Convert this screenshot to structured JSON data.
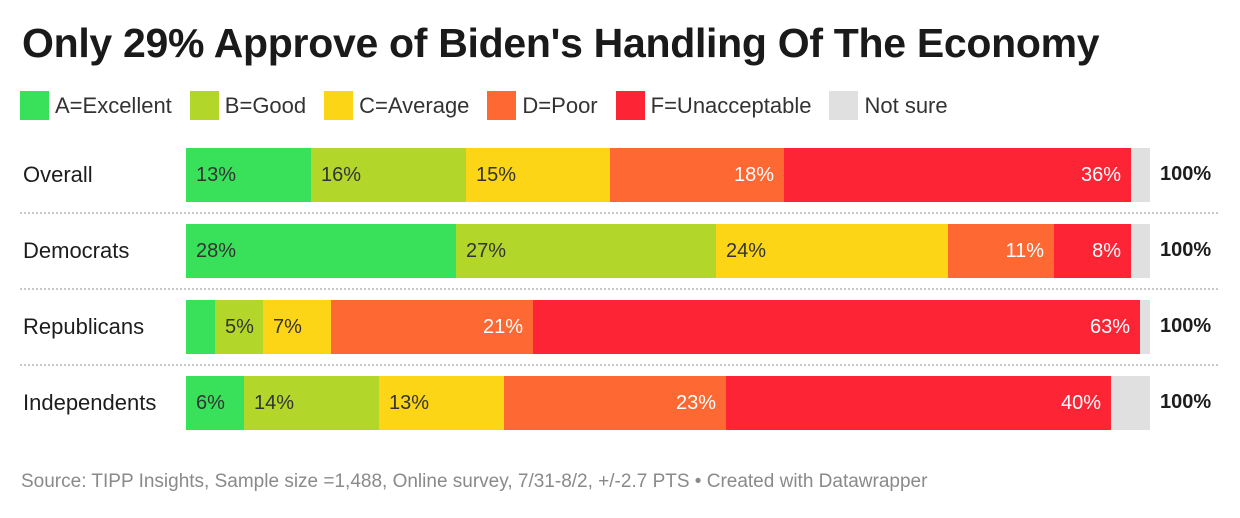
{
  "chart_data": {
    "type": "bar",
    "orientation": "horizontal",
    "stacked": true,
    "title": "Only 29% Approve of Biden's Handling Of The Economy",
    "categories": [
      "Overall",
      "Democrats",
      "Republicans",
      "Independents"
    ],
    "series": [
      {
        "name": "A=Excellent",
        "color": "#39e05a",
        "values": [
          13,
          28,
          3,
          6
        ],
        "labels": [
          "13%",
          "28%",
          "",
          "6%"
        ],
        "label_side": "left"
      },
      {
        "name": "B=Good",
        "color": "#b3d62b",
        "values": [
          16,
          27,
          5,
          14
        ],
        "labels": [
          "16%",
          "27%",
          "5%",
          "14%"
        ],
        "label_side": "left"
      },
      {
        "name": "C=Average",
        "color": "#fcd616",
        "values": [
          15,
          24,
          7,
          13
        ],
        "labels": [
          "15%",
          "24%",
          "7%",
          "13%"
        ],
        "label_side": "left"
      },
      {
        "name": "D=Poor",
        "color": "#fd6833",
        "values": [
          18,
          11,
          21,
          23
        ],
        "labels": [
          "18%",
          "11%",
          "21%",
          "23%"
        ],
        "label_side": "right"
      },
      {
        "name": "F=Unacceptable",
        "color": "#fd2436",
        "values": [
          36,
          8,
          63,
          40
        ],
        "labels": [
          "36%",
          "8%",
          "63%",
          "40%"
        ],
        "label_side": "right"
      },
      {
        "name": "Not sure",
        "color": "#e0e0e0",
        "values": [
          2,
          2,
          1,
          3
        ],
        "labels": [
          "",
          "",
          "",
          ""
        ],
        "label_side": "none"
      }
    ],
    "totals": [
      "100%",
      "100%",
      "100%",
      "100%"
    ],
    "xlim": [
      0,
      100
    ]
  },
  "footer": {
    "source": "Source: TIPP Insights, Sample size =1,488, Online survey, 7/31-8/2, +/-2.7 PTS • Created with Datawrapper"
  }
}
